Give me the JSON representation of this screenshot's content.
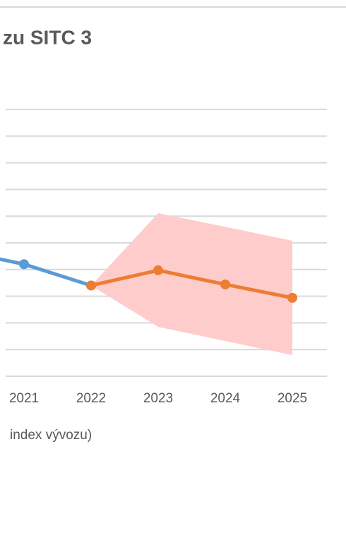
{
  "chart_data": {
    "type": "line",
    "title": "zu SITC 3",
    "x_label": "index vývozu)",
    "categories": [
      null,
      "2021",
      "2022",
      "2023",
      "2024",
      "2025"
    ],
    "series": [
      {
        "color": "#5b9bd5",
        "values": [
          4.72,
          4.2,
          3.4,
          null,
          null,
          null
        ]
      },
      {
        "color": "#ed7d31",
        "values": [
          null,
          null,
          3.4,
          3.97,
          3.44,
          2.94
        ]
      }
    ],
    "band": {
      "color": "#ffcccc",
      "lower": [
        null,
        null,
        3.4,
        1.85,
        1.32,
        0.79
      ],
      "upper": [
        null,
        null,
        3.4,
        6.11,
        5.6,
        5.08
      ]
    },
    "ylim": [
      0,
      10
    ],
    "yticks": [
      0,
      1,
      2,
      3,
      4,
      5,
      6,
      7,
      8,
      9,
      10
    ],
    "grid": true
  }
}
